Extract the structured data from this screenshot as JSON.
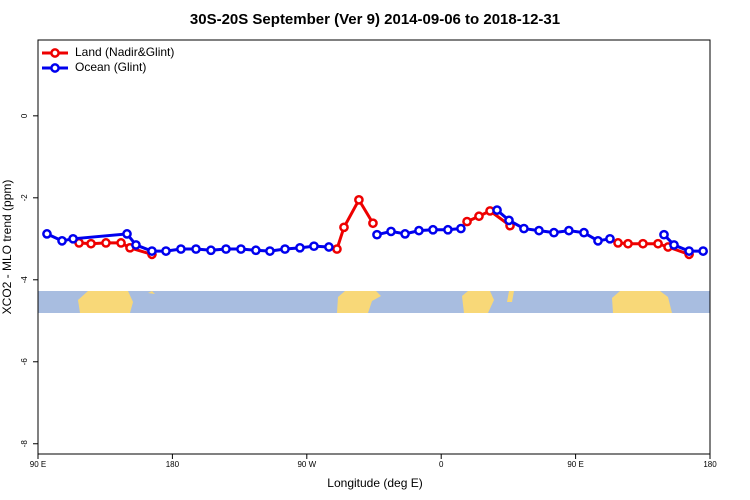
{
  "chart_data": {
    "type": "line",
    "title": "30S-20S September (Ver 9)   2014-09-06 to 2018-12-31",
    "xlabel": "Longitude (deg E)",
    "ylabel": "XCO2 - MLO trend (ppm)",
    "xlim": [
      90,
      540
    ],
    "ylim": [
      -8.25,
      1.85
    ],
    "xticks": [
      {
        "value": 90,
        "label": "90 E"
      },
      180,
      {
        "value": 270,
        "label": "90 W"
      },
      {
        "value": 360,
        "label": "0"
      },
      {
        "value": 450,
        "label": "90 E"
      },
      {
        "value": 540,
        "label": "180"
      }
    ],
    "yticks": [
      0,
      -2,
      -4,
      -6,
      -8
    ],
    "legend": "top-left",
    "series": [
      {
        "name": "Land (Nadir&Glint)",
        "color": "#ee0000",
        "x": [
          117.5,
          125.5,
          135.5,
          145.6,
          151.6,
          166.3,
          null,
          290.2,
          294.9,
          304.9,
          314.3,
          null,
          377.3,
          385.3,
          392.7,
          406.1,
          null,
          478.4,
          485.1,
          495.1,
          505.2,
          511.9,
          526.0
        ],
        "values": [
          -3.1,
          -3.12,
          -3.1,
          -3.1,
          -3.22,
          -3.38,
          null,
          -3.25,
          -2.72,
          -2.05,
          -2.62,
          null,
          -2.58,
          -2.45,
          -2.32,
          -2.68,
          null,
          -3.1,
          -3.12,
          -3.12,
          -3.12,
          -3.2,
          -3.38
        ]
      },
      {
        "name": "Ocean (Glint)",
        "color": "#0000ee",
        "x": [
          96.0,
          106.1,
          113.5,
          149.6,
          155.6,
          166.3,
          175.7,
          185.7,
          195.8,
          205.8,
          215.9,
          225.9,
          235.9,
          245.3,
          255.4,
          265.4,
          274.8,
          284.8,
          null,
          317.0,
          326.4,
          335.8,
          345.1,
          354.5,
          364.5,
          373.2,
          null,
          397.4,
          405.4,
          415.4,
          425.5,
          435.5,
          445.5,
          455.6,
          465.0,
          473.0,
          null,
          509.2,
          515.9,
          526.0,
          535.4
        ],
        "values": [
          -2.88,
          -3.05,
          -3.0,
          -2.88,
          -3.15,
          -3.3,
          -3.3,
          -3.25,
          -3.25,
          -3.28,
          -3.25,
          -3.25,
          -3.28,
          -3.3,
          -3.25,
          -3.22,
          -3.18,
          -3.2,
          null,
          -2.9,
          -2.82,
          -2.88,
          -2.8,
          -2.78,
          -2.78,
          -2.75,
          null,
          -2.3,
          -2.55,
          -2.75,
          -2.8,
          -2.85,
          -2.8,
          -2.85,
          -3.05,
          -3.0,
          null,
          -2.9,
          -3.15,
          -3.3,
          -3.3
        ]
      }
    ]
  }
}
